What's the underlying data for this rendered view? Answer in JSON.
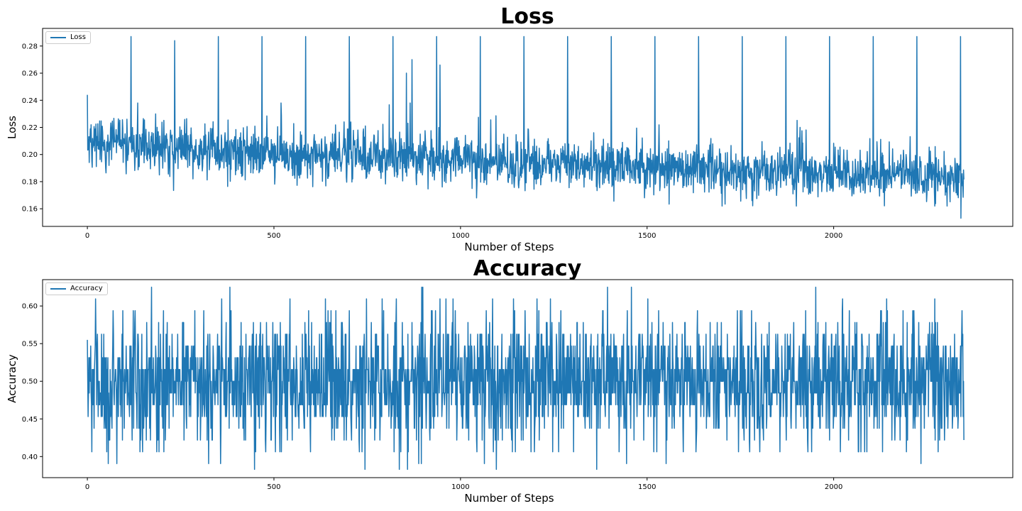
{
  "chart_data": [
    {
      "type": "line",
      "title": "Loss",
      "xlabel": "Number of Steps",
      "ylabel": "Loss",
      "xlim": [
        -120,
        2480
      ],
      "ylim": [
        0.147,
        0.293
      ],
      "xticks": [
        0,
        500,
        1000,
        1500,
        2000
      ],
      "xtick_labels": [
        "0",
        "500",
        "1000",
        "1500",
        "2000"
      ],
      "yticks": [
        0.16,
        0.18,
        0.2,
        0.22,
        0.24,
        0.26,
        0.28
      ],
      "ytick_labels": [
        "0.16",
        "0.18",
        "0.20",
        "0.22",
        "0.24",
        "0.26",
        "0.28"
      ],
      "grid": false,
      "legend_position": "top-left",
      "series": [
        {
          "name": "Loss",
          "color": "#1f77b4",
          "x_count": 2350,
          "mean_start": 0.205,
          "mean_end": 0.183,
          "noise": 0.012,
          "spikes": [
            {
              "x": 0,
              "y": 0.244
            },
            {
              "x": 117,
              "y": 0.287
            },
            {
              "x": 234,
              "y": 0.284
            },
            {
              "x": 351,
              "y": 0.287
            },
            {
              "x": 468,
              "y": 0.287
            },
            {
              "x": 585,
              "y": 0.287
            },
            {
              "x": 702,
              "y": 0.287
            },
            {
              "x": 819,
              "y": 0.287
            },
            {
              "x": 855,
              "y": 0.26
            },
            {
              "x": 870,
              "y": 0.27
            },
            {
              "x": 936,
              "y": 0.287
            },
            {
              "x": 945,
              "y": 0.266
            },
            {
              "x": 1053,
              "y": 0.287
            },
            {
              "x": 1170,
              "y": 0.287
            },
            {
              "x": 1287,
              "y": 0.287
            },
            {
              "x": 1404,
              "y": 0.287
            },
            {
              "x": 1521,
              "y": 0.287
            },
            {
              "x": 1638,
              "y": 0.287
            },
            {
              "x": 1755,
              "y": 0.287
            },
            {
              "x": 1872,
              "y": 0.287
            },
            {
              "x": 1989,
              "y": 0.287
            },
            {
              "x": 2106,
              "y": 0.287
            },
            {
              "x": 2223,
              "y": 0.287
            },
            {
              "x": 2340,
              "y": 0.287
            },
            {
              "x": 2341,
              "y": 0.153
            }
          ]
        }
      ]
    },
    {
      "type": "line",
      "title": "Accuracy",
      "xlabel": "Number of Steps",
      "ylabel": "Accuracy",
      "xlim": [
        -120,
        2480
      ],
      "ylim": [
        0.372,
        0.635
      ],
      "xticks": [
        0,
        500,
        1000,
        1500,
        2000
      ],
      "xtick_labels": [
        "0",
        "500",
        "1000",
        "1500",
        "2000"
      ],
      "yticks": [
        0.4,
        0.45,
        0.5,
        0.55,
        0.6
      ],
      "ytick_labels": [
        "0.40",
        "0.45",
        "0.50",
        "0.55",
        "0.60"
      ],
      "grid": false,
      "legend_position": "top-left",
      "series": [
        {
          "name": "Accuracy",
          "color": "#1f77b4",
          "x_count": 2350,
          "mean_start": 0.5,
          "mean_end": 0.5,
          "quantum": 0.015625,
          "noise": 0.045,
          "min": 0.383,
          "max": 0.625,
          "first": 0.555,
          "last": 0.422
        }
      ]
    }
  ]
}
